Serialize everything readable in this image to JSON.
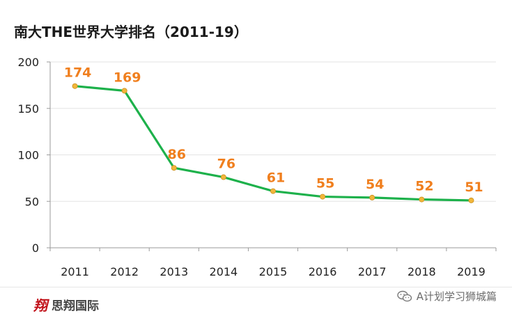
{
  "chart_data": {
    "type": "line",
    "title": "南大THE世界大学排名（2011-19）",
    "categories": [
      "2011",
      "2012",
      "2013",
      "2014",
      "2015",
      "2016",
      "2017",
      "2018",
      "2019"
    ],
    "series": [
      {
        "name": "",
        "values": [
          174,
          169,
          86,
          76,
          61,
          55,
          54,
          52,
          51
        ]
      }
    ],
    "yticks": [
      "0",
      "50",
      "100",
      "150",
      "200"
    ],
    "ylim": [
      0,
      200
    ],
    "grid": true,
    "line_color": "#1db14b",
    "marker_color": "#f2b63a",
    "label_color": "#f07f1e"
  },
  "footer": {
    "brand_logo": "翔",
    "brand_name": "思翔国际",
    "watermark": "A计划学习狮城篇",
    "watermark_icon": "wechat-icon"
  }
}
